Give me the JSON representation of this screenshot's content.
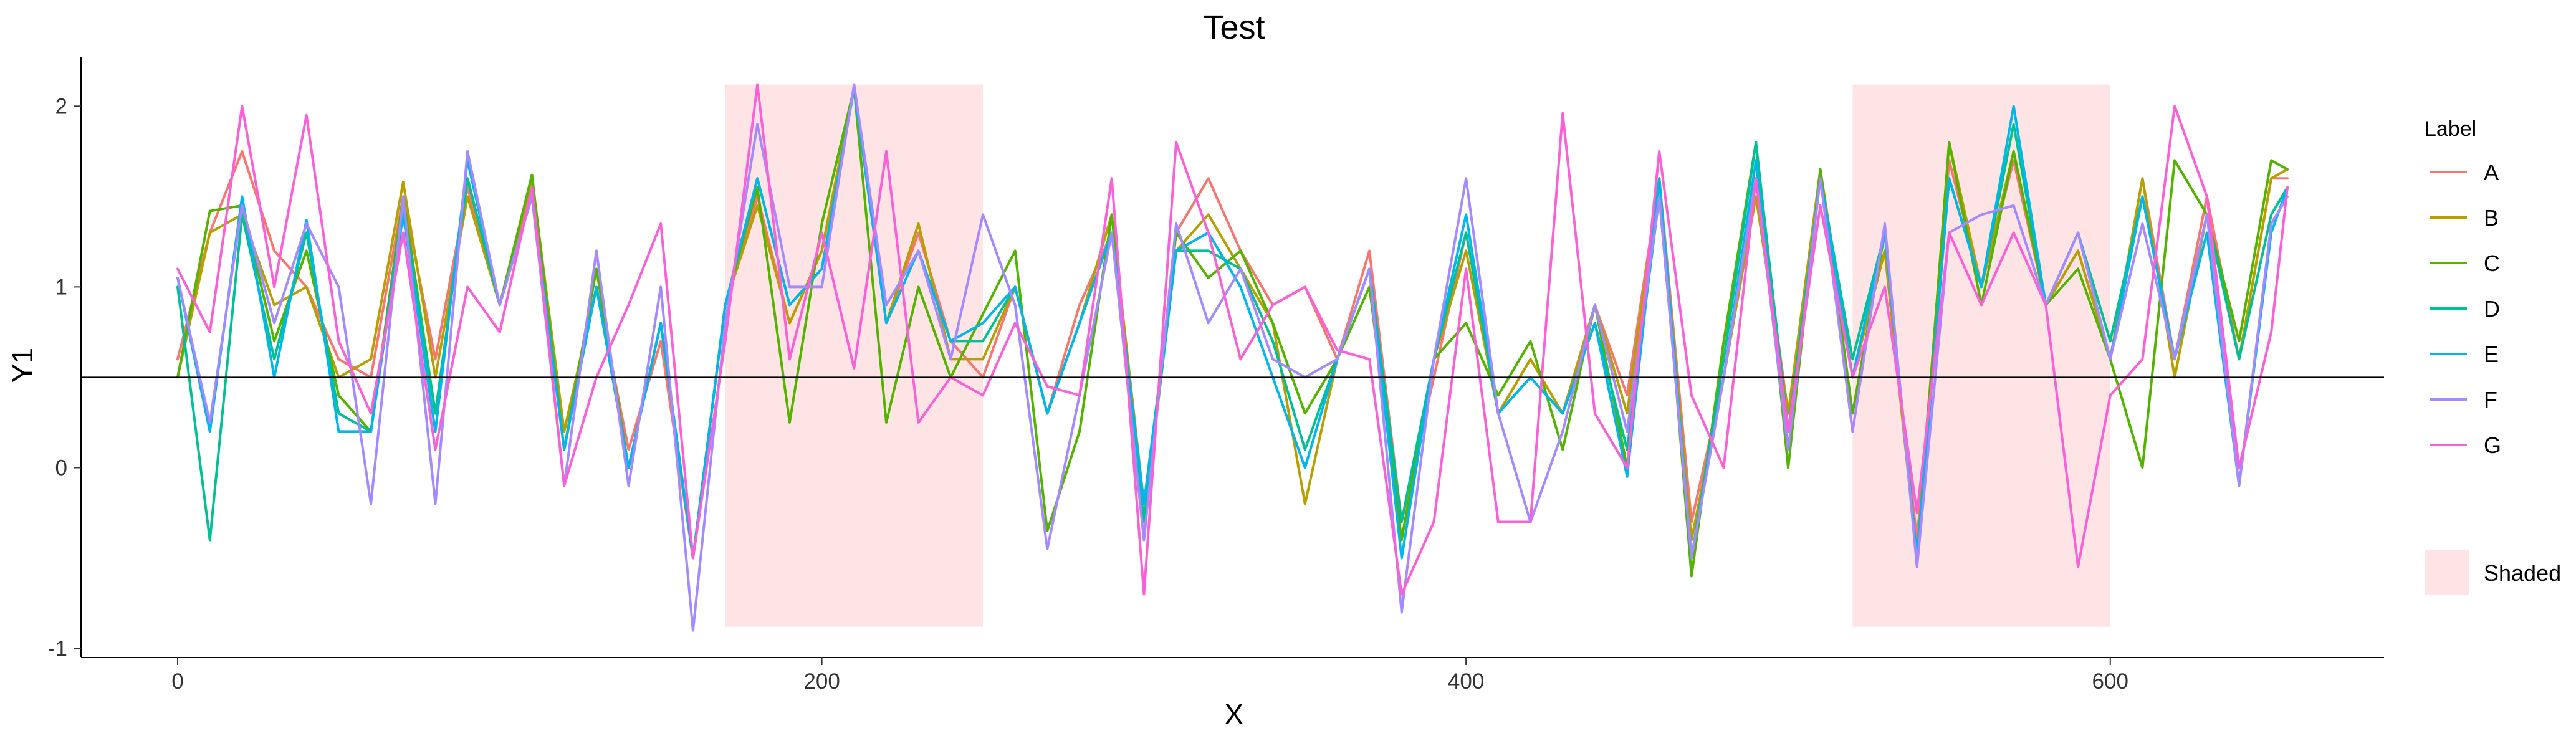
{
  "chart_data": {
    "type": "line",
    "title": "Test",
    "xlabel": "X",
    "ylabel": "Y1",
    "xlim": [
      -30,
      685
    ],
    "ylim": [
      -1.05,
      2.27
    ],
    "x_ticks": [
      0,
      200,
      400,
      600
    ],
    "y_ticks": [
      -1,
      0,
      1,
      2
    ],
    "grid": false,
    "legend_placement": "right",
    "hline": 0.5,
    "shaded_regions": [
      {
        "x": [
          170,
          250
        ],
        "y": [
          -0.88,
          2.12
        ]
      },
      {
        "x": [
          520,
          600
        ],
        "y": [
          -0.88,
          2.12
        ]
      }
    ],
    "legend": {
      "title": "Label",
      "shaded_label": "Shaded",
      "shaded_color": "#FFE4E6"
    },
    "series": [
      {
        "name": "A",
        "color": "#F8766D",
        "x": [
          0,
          10,
          20,
          30,
          40,
          50,
          60,
          70,
          80,
          90,
          100,
          110,
          120,
          130,
          140,
          150,
          160,
          170,
          180,
          190,
          200,
          210,
          220,
          230,
          240,
          250,
          260,
          270,
          280,
          290,
          300,
          310,
          320,
          330,
          340,
          350,
          360,
          370,
          380,
          390,
          400,
          410,
          420,
          430,
          440,
          450,
          460,
          470,
          480,
          490,
          500,
          510,
          520,
          530,
          540,
          550,
          560,
          570,
          580,
          590,
          600,
          610,
          620,
          630,
          640,
          650,
          655
        ],
        "y": [
          0.6,
          1.3,
          1.75,
          1.2,
          1.0,
          0.6,
          0.5,
          1.5,
          0.6,
          1.55,
          0.9,
          1.55,
          0.2,
          1.0,
          0.1,
          0.7,
          -0.5,
          0.9,
          1.5,
          0.8,
          1.2,
          2.1,
          0.8,
          1.3,
          0.7,
          0.5,
          1.0,
          0.3,
          0.9,
          1.3,
          -0.3,
          1.3,
          1.6,
          1.2,
          0.9,
          1.0,
          0.6,
          1.2,
          -0.3,
          0.5,
          1.3,
          0.3,
          0.6,
          0.3,
          0.9,
          0.4,
          1.6,
          -0.3,
          0.5,
          1.6,
          0.3,
          1.6,
          0.5,
          1.2,
          -0.4,
          1.7,
          1.0,
          1.7,
          0.9,
          1.2,
          0.6,
          1.6,
          0.6,
          1.5,
          0.6,
          1.6,
          1.6
        ]
      },
      {
        "name": "B",
        "color": "#B79F00",
        "x": [
          0,
          10,
          20,
          30,
          40,
          50,
          60,
          70,
          80,
          90,
          100,
          110,
          120,
          130,
          140,
          150,
          160,
          170,
          180,
          190,
          200,
          210,
          220,
          230,
          240,
          250,
          260,
          270,
          280,
          290,
          300,
          310,
          320,
          330,
          340,
          350,
          360,
          370,
          380,
          390,
          400,
          410,
          420,
          430,
          440,
          450,
          460,
          470,
          480,
          490,
          500,
          510,
          520,
          530,
          540,
          550,
          560,
          570,
          580,
          590,
          600,
          610,
          620,
          630,
          640,
          650,
          655
        ],
        "y": [
          0.5,
          1.3,
          1.4,
          0.9,
          1.0,
          0.5,
          0.6,
          1.58,
          0.5,
          1.5,
          0.9,
          1.6,
          0.2,
          1.0,
          0.0,
          0.8,
          -0.5,
          0.9,
          1.45,
          0.8,
          1.2,
          2.1,
          0.8,
          1.35,
          0.6,
          0.6,
          1.0,
          0.3,
          0.8,
          1.4,
          -0.2,
          1.2,
          1.4,
          1.1,
          0.8,
          -0.2,
          0.6,
          1.1,
          -0.4,
          0.6,
          1.2,
          0.3,
          0.6,
          0.3,
          0.9,
          0.3,
          1.6,
          -0.4,
          0.5,
          1.5,
          0.3,
          1.65,
          0.5,
          1.2,
          -0.5,
          1.8,
          1.0,
          1.75,
          0.9,
          1.2,
          0.6,
          1.6,
          0.5,
          1.4,
          0.6,
          1.6,
          1.65
        ]
      },
      {
        "name": "C",
        "color": "#53B400",
        "x": [
          0,
          10,
          20,
          30,
          40,
          50,
          60,
          70,
          80,
          90,
          100,
          110,
          120,
          130,
          140,
          150,
          160,
          170,
          180,
          190,
          200,
          210,
          220,
          230,
          240,
          250,
          260,
          270,
          280,
          290,
          300,
          310,
          320,
          330,
          340,
          350,
          360,
          370,
          380,
          390,
          400,
          410,
          420,
          430,
          440,
          450,
          460,
          470,
          480,
          490,
          500,
          510,
          520,
          530,
          540,
          550,
          560,
          570,
          580,
          590,
          600,
          610,
          620,
          630,
          640,
          650,
          655
        ],
        "y": [
          0.5,
          1.42,
          1.45,
          0.7,
          1.2,
          0.4,
          0.2,
          1.5,
          0.3,
          1.6,
          0.9,
          1.62,
          0.1,
          1.1,
          0.0,
          0.8,
          -0.5,
          0.9,
          1.55,
          0.25,
          1.35,
          2.1,
          0.25,
          1.0,
          0.5,
          0.85,
          1.2,
          -0.35,
          0.2,
          1.4,
          -0.3,
          1.3,
          1.05,
          1.2,
          0.8,
          0.3,
          0.6,
          1.0,
          -0.4,
          0.6,
          0.8,
          0.4,
          0.7,
          0.1,
          0.9,
          0.0,
          1.6,
          -0.6,
          0.7,
          1.8,
          0.0,
          1.65,
          0.3,
          1.3,
          -0.5,
          1.8,
          0.9,
          1.75,
          0.9,
          1.1,
          0.6,
          0.0,
          1.7,
          1.4,
          0.7,
          1.7,
          1.65
        ]
      },
      {
        "name": "D",
        "color": "#00C094",
        "x": [
          0,
          10,
          20,
          30,
          40,
          50,
          60,
          70,
          80,
          90,
          100,
          110,
          120,
          130,
          140,
          150,
          160,
          170,
          180,
          190,
          200,
          210,
          220,
          230,
          240,
          250,
          260,
          270,
          280,
          290,
          300,
          310,
          320,
          330,
          340,
          350,
          360,
          370,
          380,
          390,
          400,
          410,
          420,
          430,
          440,
          450,
          460,
          470,
          480,
          490,
          500,
          510,
          520,
          530,
          540,
          550,
          560,
          570,
          580,
          590,
          600,
          610,
          620,
          630,
          640,
          650,
          655
        ],
        "y": [
          1.0,
          -0.4,
          1.4,
          0.6,
          1.3,
          0.3,
          0.2,
          1.45,
          0.3,
          1.6,
          0.9,
          1.5,
          0.1,
          1.0,
          0.0,
          0.8,
          -0.5,
          0.9,
          1.6,
          0.9,
          1.1,
          2.1,
          0.9,
          1.2,
          0.7,
          0.7,
          1.0,
          0.3,
          0.8,
          1.3,
          -0.3,
          1.2,
          1.2,
          1.1,
          0.7,
          0.1,
          0.6,
          1.1,
          -0.3,
          0.6,
          1.3,
          0.3,
          0.5,
          0.3,
          0.8,
          0.1,
          1.5,
          -0.5,
          0.6,
          1.8,
          0.2,
          1.6,
          0.6,
          1.3,
          -0.5,
          1.6,
          1.0,
          1.9,
          0.9,
          1.3,
          0.7,
          1.5,
          0.6,
          1.4,
          0.6,
          1.4,
          1.55
        ]
      },
      {
        "name": "E",
        "color": "#00B6EB",
        "x": [
          0,
          10,
          20,
          30,
          40,
          50,
          60,
          70,
          80,
          90,
          100,
          110,
          120,
          130,
          140,
          150,
          160,
          170,
          180,
          190,
          200,
          210,
          220,
          230,
          240,
          250,
          260,
          270,
          280,
          290,
          300,
          310,
          320,
          330,
          340,
          350,
          360,
          370,
          380,
          390,
          400,
          410,
          420,
          430,
          440,
          450,
          460,
          470,
          480,
          490,
          500,
          510,
          520,
          530,
          540,
          550,
          560,
          570,
          580,
          590,
          600,
          610,
          620,
          630,
          640,
          650,
          655
        ],
        "y": [
          1.05,
          0.2,
          1.5,
          0.5,
          1.37,
          0.2,
          0.2,
          1.4,
          0.2,
          1.7,
          0.9,
          1.5,
          0.1,
          1.0,
          0.0,
          0.8,
          -0.5,
          0.9,
          1.6,
          0.9,
          1.1,
          2.1,
          0.8,
          1.2,
          0.7,
          0.8,
          1.0,
          0.3,
          0.8,
          1.3,
          -0.2,
          1.2,
          1.3,
          1.0,
          0.5,
          0.0,
          0.6,
          1.1,
          -0.5,
          0.6,
          1.4,
          0.3,
          0.5,
          0.3,
          0.8,
          -0.05,
          1.6,
          -0.5,
          0.5,
          1.7,
          0.1,
          1.6,
          0.5,
          1.3,
          -0.5,
          1.6,
          1.0,
          2.0,
          0.9,
          1.3,
          0.6,
          1.5,
          0.6,
          1.3,
          -0.1,
          1.3,
          1.55
        ]
      },
      {
        "name": "F",
        "color": "#A58AFF",
        "x": [
          0,
          10,
          20,
          30,
          40,
          50,
          60,
          70,
          80,
          90,
          100,
          110,
          120,
          130,
          140,
          150,
          160,
          170,
          180,
          190,
          200,
          210,
          220,
          230,
          240,
          250,
          260,
          270,
          280,
          290,
          300,
          310,
          320,
          330,
          340,
          350,
          360,
          370,
          380,
          390,
          400,
          410,
          420,
          430,
          440,
          450,
          460,
          470,
          480,
          490,
          500,
          510,
          520,
          530,
          540,
          550,
          560,
          570,
          580,
          590,
          600,
          610,
          620,
          630,
          640,
          650,
          655
        ],
        "y": [
          1.05,
          0.25,
          1.45,
          0.8,
          1.35,
          1.0,
          -0.2,
          1.5,
          -0.2,
          1.75,
          0.9,
          1.5,
          -0.1,
          1.2,
          -0.1,
          1.0,
          -0.9,
          0.8,
          1.9,
          1.0,
          1.0,
          2.12,
          0.9,
          1.2,
          0.6,
          1.4,
          0.9,
          -0.45,
          0.4,
          1.3,
          -0.4,
          1.35,
          0.8,
          1.1,
          0.6,
          0.5,
          0.6,
          1.1,
          -0.8,
          0.6,
          1.6,
          0.3,
          -0.3,
          0.2,
          0.9,
          0.2,
          1.5,
          -0.5,
          0.5,
          1.6,
          0.1,
          1.6,
          0.2,
          1.35,
          -0.55,
          1.3,
          1.4,
          1.45,
          0.9,
          1.3,
          0.6,
          1.35,
          0.6,
          1.4,
          -0.1,
          1.35,
          1.5
        ]
      },
      {
        "name": "G",
        "color": "#FB61D7",
        "x": [
          0,
          10,
          20,
          30,
          40,
          50,
          60,
          70,
          80,
          90,
          100,
          110,
          120,
          130,
          140,
          150,
          160,
          170,
          180,
          190,
          200,
          210,
          220,
          230,
          240,
          250,
          260,
          270,
          280,
          290,
          300,
          310,
          320,
          330,
          340,
          350,
          360,
          370,
          380,
          390,
          400,
          410,
          420,
          430,
          440,
          450,
          460,
          470,
          480,
          490,
          500,
          510,
          520,
          530,
          540,
          550,
          560,
          570,
          580,
          590,
          600,
          610,
          620,
          630,
          640,
          650,
          655
        ],
        "y": [
          1.1,
          0.75,
          2.0,
          1.0,
          1.95,
          0.7,
          0.3,
          1.3,
          0.1,
          1.0,
          0.75,
          1.55,
          -0.1,
          0.5,
          0.9,
          1.35,
          -0.5,
          0.7,
          2.12,
          0.6,
          1.3,
          0.55,
          1.75,
          0.25,
          0.5,
          0.4,
          0.8,
          0.45,
          0.4,
          1.6,
          -0.7,
          1.8,
          1.3,
          0.6,
          0.9,
          1.0,
          0.65,
          0.6,
          -0.7,
          -0.3,
          1.1,
          -0.3,
          -0.3,
          1.96,
          0.3,
          0.0,
          1.75,
          0.4,
          0.0,
          1.6,
          0.2,
          1.45,
          0.5,
          1.0,
          -0.25,
          1.3,
          0.9,
          1.3,
          0.9,
          -0.55,
          0.4,
          0.6,
          2.0,
          1.5,
          0.0,
          0.75,
          1.55
        ]
      }
    ]
  }
}
